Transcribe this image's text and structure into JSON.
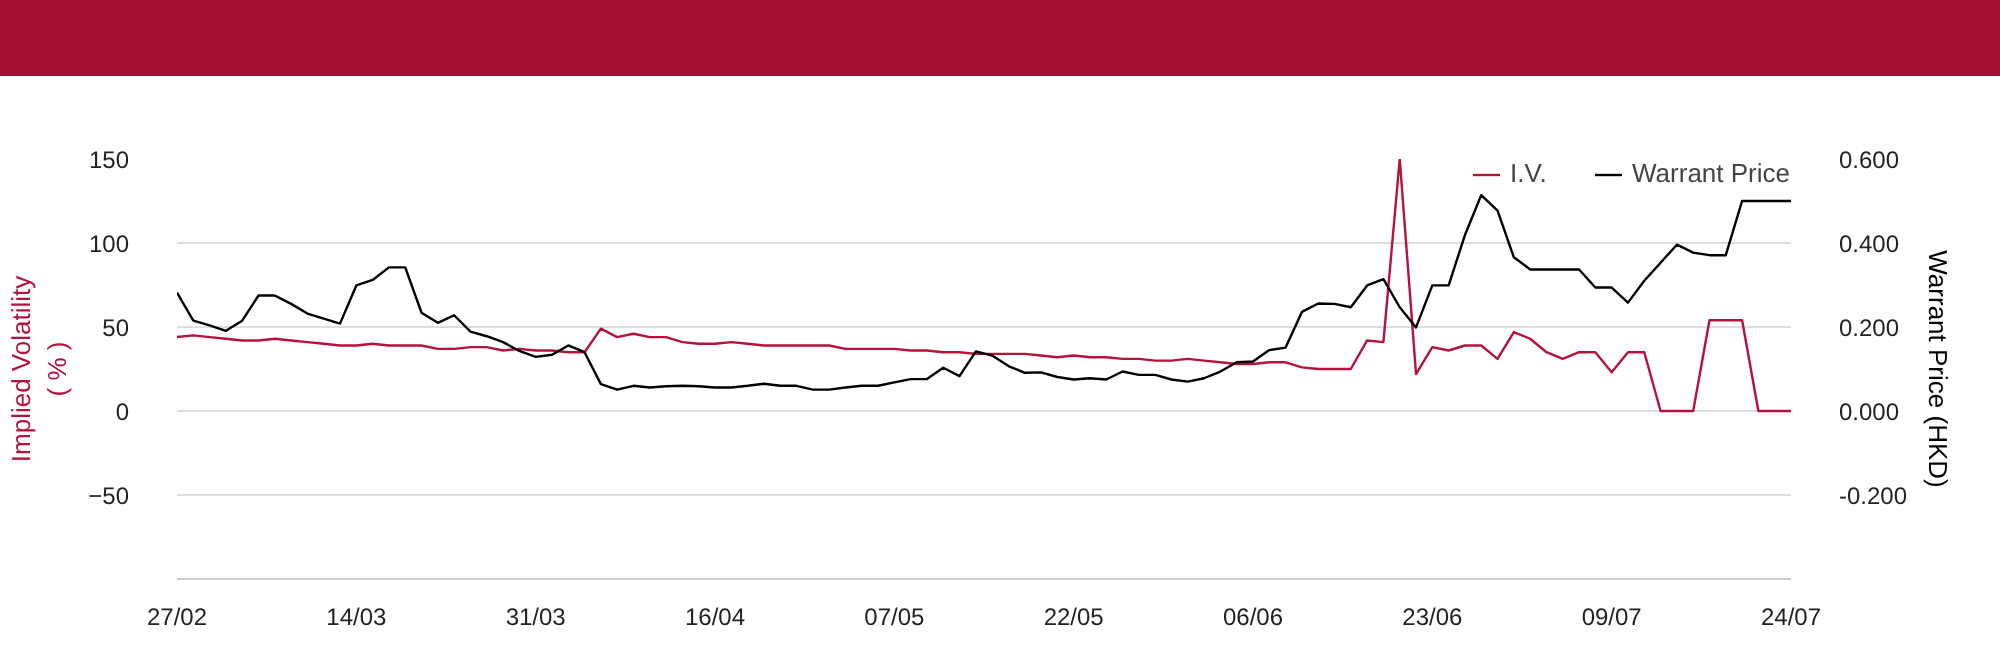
{
  "chart_data": {
    "type": "line",
    "ylabel": "Implied Volatility\n( % )",
    "y2label": "Warrant Price (HKD)",
    "categories": [
      "27/02",
      null,
      null,
      null,
      null,
      null,
      null,
      null,
      null,
      null,
      null,
      "14/03",
      null,
      null,
      null,
      null,
      null,
      null,
      null,
      null,
      null,
      null,
      "31/03",
      null,
      null,
      null,
      null,
      null,
      null,
      null,
      null,
      null,
      null,
      "16/04",
      null,
      null,
      null,
      null,
      null,
      null,
      null,
      null,
      null,
      null,
      "07/05",
      null,
      null,
      null,
      null,
      null,
      null,
      null,
      null,
      null,
      null,
      "22/05",
      null,
      null,
      null,
      null,
      null,
      null,
      null,
      null,
      null,
      null,
      "06/06",
      null,
      null,
      null,
      null,
      null,
      null,
      null,
      null,
      null,
      null,
      "23/06",
      null,
      null,
      null,
      null,
      null,
      null,
      null,
      null,
      null,
      null,
      "09/07",
      null,
      null,
      null,
      null,
      null,
      null,
      null,
      null,
      null,
      null,
      "24/07"
    ],
    "series": [
      {
        "name": "I.V.",
        "color": "#b5123e",
        "axis": "y",
        "values": [
          44,
          45,
          44,
          43,
          42,
          42,
          43,
          42,
          41,
          40,
          39,
          39,
          40,
          39,
          39,
          39,
          37,
          37,
          38,
          38,
          36,
          37,
          36,
          36,
          35,
          35,
          49,
          44,
          46,
          44,
          44,
          41,
          40,
          40,
          41,
          40,
          39,
          39,
          39,
          39,
          39,
          37,
          37,
          37,
          37,
          36,
          36,
          35,
          35,
          34,
          34,
          34,
          34,
          33,
          32,
          33,
          32,
          32,
          31,
          31,
          30,
          30,
          31,
          30,
          29,
          28,
          28,
          29,
          29,
          26,
          25,
          25,
          25,
          42,
          41,
          150,
          22,
          38,
          36,
          39,
          39,
          31,
          47,
          43,
          35,
          31,
          35,
          35,
          23,
          35,
          35,
          0,
          0,
          0,
          54,
          54,
          54,
          0,
          0,
          0
        ]
      },
      {
        "name": "Warrant Price",
        "color": "#000000",
        "axis": "y2",
        "values": [
          0.282,
          0.215,
          0.204,
          0.191,
          0.215,
          0.275,
          0.275,
          0.255,
          0.232,
          0.22,
          0.208,
          0.299,
          0.312,
          0.342,
          0.342,
          0.234,
          0.21,
          0.228,
          0.189,
          0.178,
          0.164,
          0.143,
          0.129,
          0.134,
          0.156,
          0.14,
          0.064,
          0.051,
          0.06,
          0.056,
          0.059,
          0.06,
          0.059,
          0.056,
          0.056,
          0.06,
          0.065,
          0.06,
          0.06,
          0.051,
          0.051,
          0.056,
          0.06,
          0.06,
          0.068,
          0.076,
          0.076,
          0.103,
          0.083,
          0.142,
          0.132,
          0.107,
          0.091,
          0.092,
          0.081,
          0.075,
          0.078,
          0.075,
          0.094,
          0.086,
          0.086,
          0.075,
          0.07,
          0.078,
          0.094,
          0.116,
          0.118,
          0.145,
          0.151,
          0.236,
          0.256,
          0.255,
          0.247,
          0.299,
          0.314,
          0.247,
          0.199,
          0.299,
          0.299,
          0.419,
          0.514,
          0.477,
          0.366,
          0.337,
          0.337,
          0.337,
          0.337,
          0.294,
          0.294,
          0.258,
          0.31,
          0.353,
          0.396,
          0.377,
          0.371,
          0.371,
          0.5,
          0.5,
          0.5,
          0.5
        ]
      }
    ],
    "ylim": [
      -100,
      150
    ],
    "yticks": [
      -50,
      0,
      50,
      100,
      150
    ],
    "y2lim": [
      -0.4,
      0.6
    ],
    "y2ticks": [
      {
        "value": -0.2,
        "label": "-0.200"
      },
      {
        "value": 0,
        "label": "0.000"
      },
      {
        "value": 0.2,
        "label": "0.200"
      },
      {
        "value": 0.4,
        "label": "0.400"
      },
      {
        "value": 0.6,
        "label": "0.600"
      }
    ],
    "grid": "y",
    "legend": "top right"
  }
}
